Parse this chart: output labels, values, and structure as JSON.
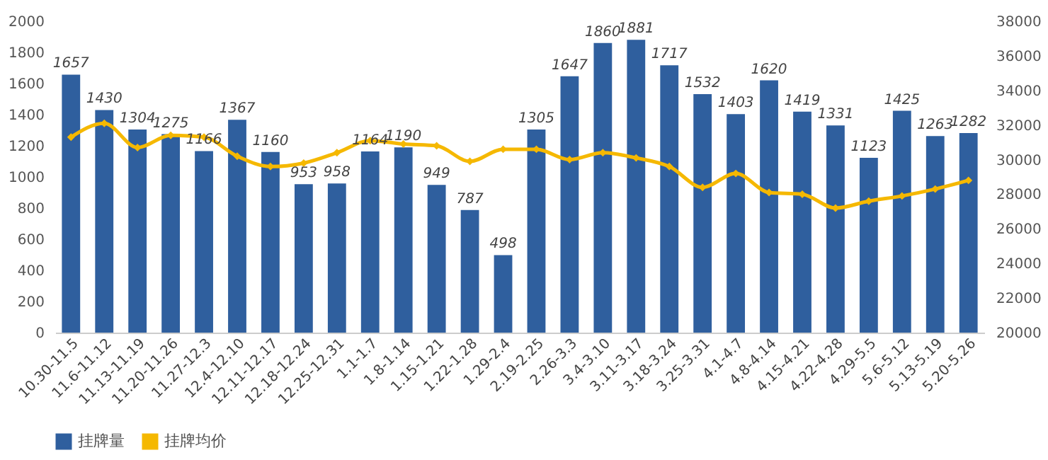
{
  "chart_data": {
    "type": "bar",
    "categories": [
      "10.30-11.5",
      "11.6-11.12",
      "11.13-11.19",
      "11.20-11.26",
      "11.27-12.3",
      "12.4-12.10",
      "12.11-12.17",
      "12.18-12.24",
      "12.25-12.31",
      "1.1-1.7",
      "1.8-1.14",
      "1.15-1.21",
      "1.22-1.28",
      "1.29-2.4",
      "2.19-2.25",
      "2.26-3.3",
      "3.4-3.10",
      "3.11-3.17",
      "3.18-3.24",
      "3.25-3.31",
      "4.1-4.7",
      "4.8-4.14",
      "4.15-4.21",
      "4.22-4.28",
      "4.29-5.5",
      "5.6-5.12",
      "5.13-5.19",
      "5.20-5.26"
    ],
    "series": [
      {
        "name": "挂牌量",
        "color": "#2f5f9e",
        "values": [
          1657,
          1430,
          1304,
          1275,
          1166,
          1367,
          1160,
          953,
          958,
          1164,
          1190,
          949,
          787,
          498,
          1305,
          1647,
          1860,
          1881,
          1717,
          1532,
          1403,
          1620,
          1419,
          1331,
          1123,
          1425,
          1263,
          1282
        ],
        "value_labels": [
          "1657",
          "1430",
          "1304",
          "1275",
          "1166",
          "1367",
          "1160",
          "953",
          "958",
          "1164",
          "1190",
          "949",
          "787",
          "498",
          "1305",
          "1647",
          "1860",
          "1881",
          "1717",
          "1532",
          "1403",
          "1620",
          "1419",
          "1331",
          "1123",
          "1425",
          "1263",
          "1282"
        ]
      },
      {
        "name": "挂牌均价",
        "type": "line",
        "axis": "y2",
        "color": "#f5b800",
        "marker": "diamond",
        "values": [
          31300,
          32100,
          30700,
          31400,
          31300,
          30200,
          29600,
          29800,
          30400,
          31100,
          30900,
          30800,
          29900,
          30600,
          30600,
          30000,
          30400,
          30100,
          29600,
          28400,
          29200,
          28100,
          28000,
          27200,
          27600,
          27900,
          28300,
          28800
        ]
      }
    ],
    "ylim": [
      0,
      2000
    ],
    "yticks": [
      0,
      200,
      400,
      600,
      800,
      1000,
      1200,
      1400,
      1600,
      1800,
      2000
    ],
    "y2lim": [
      20000,
      38000
    ],
    "y2ticks": [
      20000,
      22000,
      24000,
      26000,
      28000,
      30000,
      32000,
      34000,
      36000,
      38000
    ],
    "grid": false,
    "legend": "bottom"
  }
}
